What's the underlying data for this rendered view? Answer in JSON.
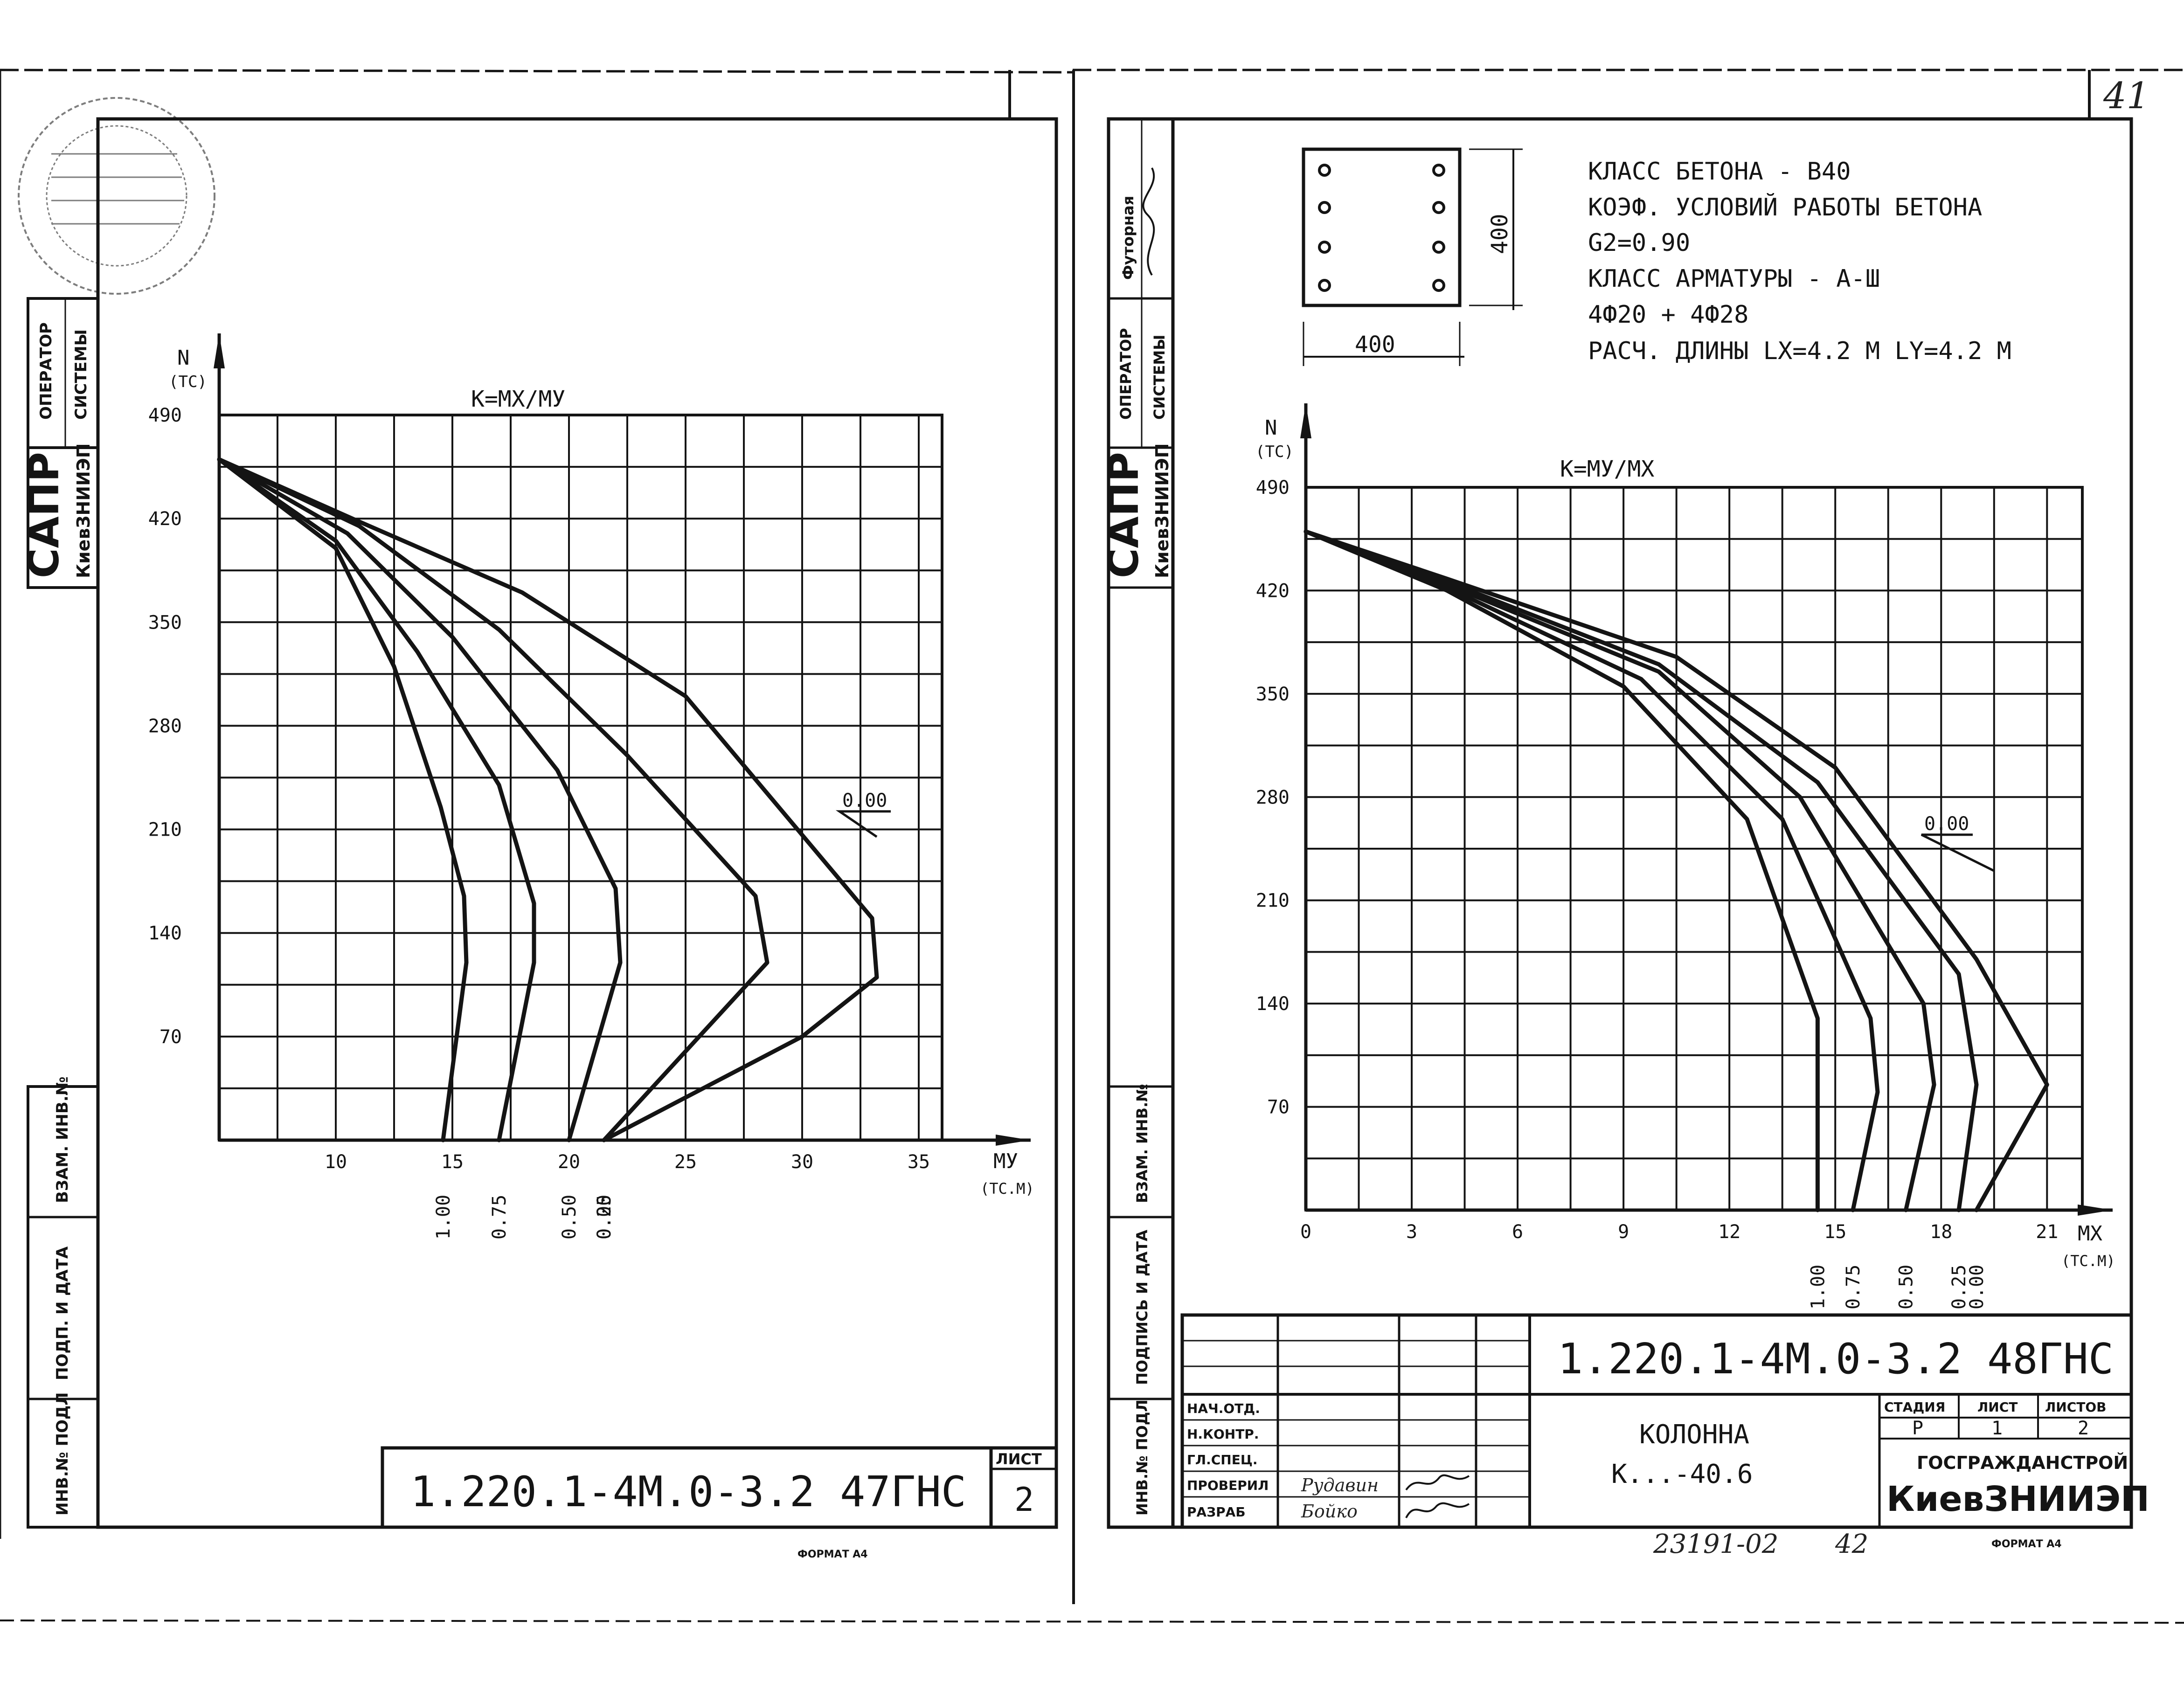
{
  "page_number": "41",
  "format_label": "ФОРМАТ А4",
  "left_sheet": {
    "sidebar": {
      "operator": [
        "ОПЕРАТОР",
        "СИСТЕМЫ"
      ],
      "sapr": "САПР",
      "org": "КиевЗНИИЭП",
      "vzam": "ВЗАМ. ИНВ.№",
      "podp": "ПОДП. И ДАТА",
      "inv": "ИНВ.№ ПОДЛ"
    },
    "code": "1.220.1-4М.0-3.2 47ГНС",
    "list_label": "ЛИСТ",
    "list_value": "2"
  },
  "right_sheet": {
    "sidebar": {
      "futornaya": "Футорная",
      "operator": [
        "ОПЕРАТОР",
        "СИСТЕМЫ"
      ],
      "sapr": "САПР",
      "org": "КиевЗНИИЭП",
      "vzam": "ВЗАМ. ИНВ.№",
      "podp": "ПОДПИСЬ И ДАТА",
      "inv": "ИНВ.№ ПОДЛ"
    },
    "section": {
      "width_label": "400",
      "height_label": "400"
    },
    "specs": [
      "КЛАСС БЕТОНА - В40",
      "КОЭФ. УСЛОВИЙ РАБОТЫ БЕТОНА",
      "G2=0.90",
      "КЛАСС АРМАТУРЫ - А-Ш",
      "4Ф20 + 4Ф28",
      "РАСЧ. ДЛИНЫ  LX=4.2 М  LY=4.2 М"
    ],
    "title_block": {
      "code": "1.220.1-4М.0-3.2 48ГНС",
      "roles": [
        "НАЧ.ОТД.",
        "Н.КОНТР.",
        "ГЛ.СПЕЦ.",
        "ПРОВЕРИЛ",
        "РАЗРАБ"
      ],
      "names": [
        "",
        "",
        "",
        "Рудавин",
        "Бойко"
      ],
      "name_label": "КОЛОННА",
      "mark": "К...-40.6",
      "stage_label": "СТАДИЯ",
      "sheet_label": "ЛИСТ",
      "sheets_label": "ЛИСТОВ",
      "stage_value": "Р",
      "sheet_value": "1",
      "sheets_value": "2",
      "org_top": "ГОСГРАЖДАНСТРОЙ",
      "org_bottom": "КиевЗНИИЭП"
    },
    "archive_no": "23191-02",
    "archive_sheet": "42"
  },
  "chart_data": [
    {
      "type": "line",
      "title": "К=МХ/МУ",
      "xlabel": "МУ",
      "xunit": "(ТС.М)",
      "ylabel": "N",
      "yunit": "(ТС)",
      "xlim": [
        5,
        36
      ],
      "ylim": [
        0,
        490
      ],
      "xticks": [
        "10",
        "15",
        "20",
        "25",
        "30",
        "35"
      ],
      "yticks": [
        "490",
        "420",
        "350",
        "280",
        "210",
        "140",
        "70"
      ],
      "annotation": "0.00",
      "series": [
        {
          "name": "1.00",
          "points": [
            [
              5,
              460
            ],
            [
              10,
              400
            ],
            [
              12.5,
              320
            ],
            [
              14.5,
              225
            ],
            [
              15.5,
              165
            ],
            [
              15.6,
              120
            ],
            [
              14.6,
              0
            ]
          ]
        },
        {
          "name": "0.75",
          "points": [
            [
              5,
              460
            ],
            [
              10,
              405
            ],
            [
              13.5,
              330
            ],
            [
              17,
              240
            ],
            [
              18.5,
              160
            ],
            [
              18.5,
              120
            ],
            [
              17,
              0
            ]
          ]
        },
        {
          "name": "0.50",
          "points": [
            [
              5,
              460
            ],
            [
              10.5,
              410
            ],
            [
              15,
              340
            ],
            [
              19.5,
              250
            ],
            [
              22,
              170
            ],
            [
              22.2,
              120
            ],
            [
              20,
              0
            ]
          ]
        },
        {
          "name": "0.25",
          "points": [
            [
              5,
              460
            ],
            [
              11,
              415
            ],
            [
              17,
              345
            ],
            [
              22.5,
              260
            ],
            [
              28,
              165
            ],
            [
              28.5,
              120
            ],
            [
              21.5,
              0
            ]
          ]
        },
        {
          "name": "0.00",
          "points": [
            [
              5,
              460
            ],
            [
              11,
              418
            ],
            [
              18,
              370
            ],
            [
              25,
              300
            ],
            [
              33,
              150
            ],
            [
              33.2,
              110
            ],
            [
              30,
              70
            ],
            [
              21.5,
              0
            ]
          ]
        }
      ]
    },
    {
      "type": "line",
      "title": "К=МУ/МХ",
      "xlabel": "МХ",
      "xunit": "(ТС.М)",
      "ylabel": "N",
      "yunit": "(ТС)",
      "xlim": [
        0,
        22
      ],
      "ylim": [
        0,
        490
      ],
      "xticks": [
        "0",
        "3",
        "6",
        "9",
        "12",
        "15",
        "18",
        "21"
      ],
      "yticks": [
        "490",
        "420",
        "350",
        "280",
        "210",
        "140",
        "70"
      ],
      "annotation": "0.00",
      "series": [
        {
          "name": "1.00",
          "points": [
            [
              0,
              460
            ],
            [
              4,
              420
            ],
            [
              9,
              355
            ],
            [
              12.5,
              265
            ],
            [
              14.5,
              130
            ],
            [
              14.5,
              80
            ],
            [
              14.5,
              0
            ]
          ]
        },
        {
          "name": "0.75",
          "points": [
            [
              0,
              460
            ],
            [
              4,
              422
            ],
            [
              9.5,
              360
            ],
            [
              13.5,
              265
            ],
            [
              16,
              130
            ],
            [
              16.2,
              80
            ],
            [
              15.5,
              0
            ]
          ]
        },
        {
          "name": "0.50",
          "points": [
            [
              0,
              460
            ],
            [
              4,
              424
            ],
            [
              10,
              365
            ],
            [
              14,
              280
            ],
            [
              17.5,
              140
            ],
            [
              17.8,
              85
            ],
            [
              17,
              0
            ]
          ]
        },
        {
          "name": "0.25",
          "points": [
            [
              0,
              460
            ],
            [
              4,
              426
            ],
            [
              10,
              370
            ],
            [
              14.5,
              290
            ],
            [
              18.5,
              160
            ],
            [
              19,
              85
            ],
            [
              18.5,
              0
            ]
          ]
        },
        {
          "name": "0.00",
          "points": [
            [
              0,
              460
            ],
            [
              4,
              428
            ],
            [
              10.5,
              375
            ],
            [
              15,
              300
            ],
            [
              19,
              170
            ],
            [
              21,
              85
            ],
            [
              19,
              0
            ]
          ]
        }
      ]
    }
  ]
}
